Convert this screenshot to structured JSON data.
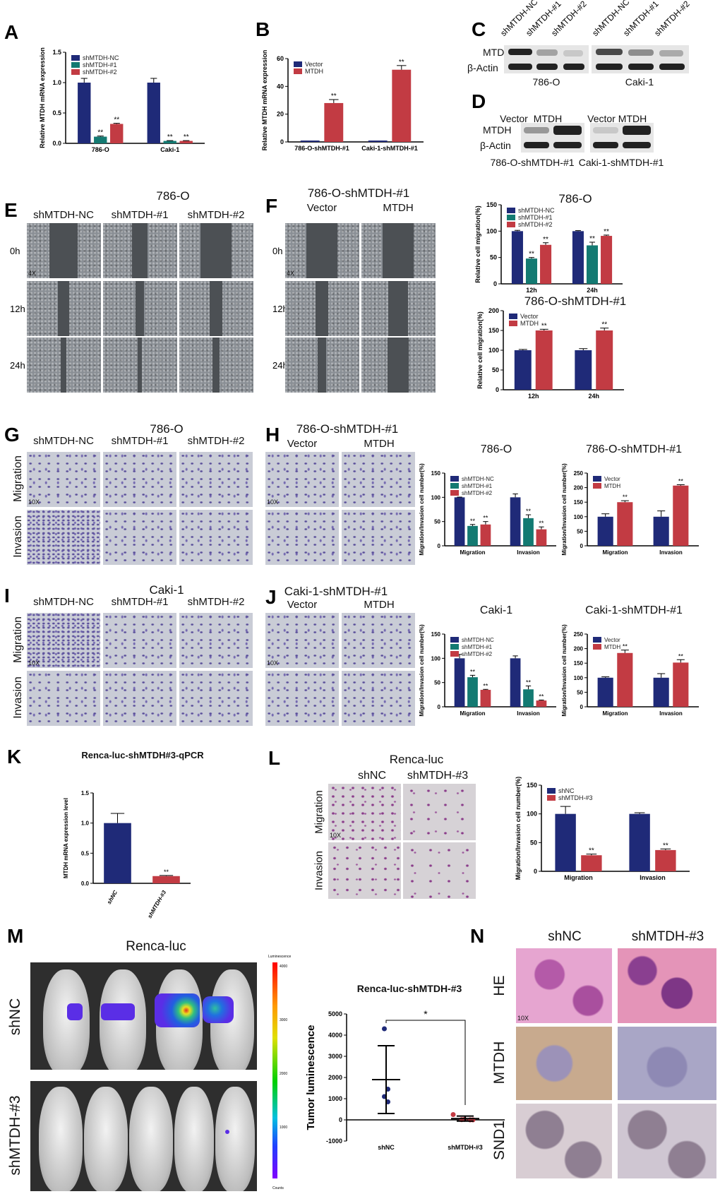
{
  "panel_letters": [
    "A",
    "B",
    "C",
    "D",
    "E",
    "F",
    "G",
    "H",
    "I",
    "J",
    "K",
    "L",
    "M",
    "N"
  ],
  "blots": {
    "c_lanes": [
      "shMTDH-NC",
      "shMTDH-#1",
      "shMTDH-#2",
      "shMTDH-NC",
      "shMTDH-#1",
      "shMTDH-#2"
    ],
    "rows": [
      "MTDH",
      "β-Actin"
    ],
    "c_groups": [
      "786-O",
      "Caki-1"
    ],
    "d_lanes": [
      "Vector",
      "MTDH",
      "Vector",
      "MTDH"
    ],
    "d_groups": [
      "786-O-shMTDH-#1",
      "Caki-1-shMTDH-#1"
    ]
  },
  "wound": {
    "e_title": "786-O",
    "e_cols": [
      "shMTDH-NC",
      "shMTDH-#1",
      "shMTDH-#2"
    ],
    "rows": [
      "0h",
      "12h",
      "24h"
    ],
    "f_title": "786-O-shMTDH-#1",
    "f_cols": [
      "Vector",
      "MTDH"
    ],
    "mag": "4X"
  },
  "transwell": {
    "g_title": "786-O",
    "g_cols": [
      "shMTDH-NC",
      "shMTDH-#1",
      "shMTDH-#2"
    ],
    "rows": [
      "Migration",
      "Invasion"
    ],
    "h_title": "786-O-shMTDH-#1",
    "h_cols": [
      "Vector",
      "MTDH"
    ],
    "i_title": "Caki-1",
    "j_title": "Caki-1-shMTDH-#1",
    "mag": "10X"
  },
  "renca": {
    "l_title": "Renca-luc",
    "l_cols": [
      "shNC",
      "shMTDH-#3"
    ],
    "m_title": "Renca-luc",
    "m_rows": [
      "shNC",
      "shMTDH-#3"
    ],
    "colorbar": {
      "title": "Luminescence",
      "ticks": [
        "4000",
        "3000",
        "2000",
        "1000"
      ],
      "unit": "Counts"
    },
    "n_cols": [
      "shNC",
      "shMTDH-#3"
    ],
    "n_rows": [
      "HE",
      "MTDH",
      "SND1"
    ]
  },
  "colors": {
    "navy": "#1f2a78",
    "teal": "#137a72",
    "red": "#c23b43"
  },
  "chart_data": [
    {
      "id": "A",
      "type": "bar",
      "title": "",
      "ylabel": "Relative MTDH mRNA expression",
      "ylim": [
        0,
        1.5
      ],
      "ticks": [
        0,
        0.5,
        1.0,
        1.5
      ],
      "tick_labels": [
        "0.0",
        "0.5",
        "1.0",
        "1.5"
      ],
      "categories": [
        "786-O",
        "Caki-1"
      ],
      "series": [
        {
          "name": "shMTDH-NC",
          "color": "#1f2a78",
          "values": [
            1.0,
            1.0
          ],
          "err": [
            0.07,
            0.07
          ],
          "sig": [
            "",
            ""
          ]
        },
        {
          "name": "shMTDH-#1",
          "color": "#137a72",
          "values": [
            0.11,
            0.04
          ],
          "err": [
            0.01,
            0.005
          ],
          "sig": [
            "**",
            "**"
          ]
        },
        {
          "name": "shMTDH-#2",
          "color": "#c23b43",
          "values": [
            0.32,
            0.04
          ],
          "err": [
            0.01,
            0.005
          ],
          "sig": [
            "**",
            "**"
          ]
        }
      ]
    },
    {
      "id": "B",
      "type": "bar",
      "title": "",
      "ylabel": "Relative MTDH mRNA expression",
      "ylim": [
        0,
        60
      ],
      "ticks": [
        0,
        20,
        40,
        60
      ],
      "tick_labels": [
        "0",
        "20",
        "40",
        "60"
      ],
      "categories": [
        "786-O-shMTDH-#1",
        "Caki-1-shMTDH-#1"
      ],
      "series": [
        {
          "name": "Vector",
          "color": "#1f2a78",
          "values": [
            1,
            1
          ],
          "err": [
            0,
            0
          ],
          "sig": [
            "",
            ""
          ]
        },
        {
          "name": "MTDH",
          "color": "#c23b43",
          "values": [
            28,
            52
          ],
          "err": [
            2.5,
            3
          ],
          "sig": [
            "**",
            "**"
          ]
        }
      ]
    },
    {
      "id": "E",
      "type": "bar",
      "title": "786-O",
      "ylabel": "Relative  cell migration(%)",
      "ylim": [
        0,
        150
      ],
      "ticks": [
        0,
        50,
        100,
        150
      ],
      "tick_labels": [
        "0",
        "50",
        "100",
        "150"
      ],
      "categories": [
        "12h",
        "24h"
      ],
      "series": [
        {
          "name": "shMTDH-NC",
          "color": "#1f2a78",
          "values": [
            100,
            100
          ],
          "err": [
            1.5,
            1
          ],
          "sig": [
            "",
            ""
          ]
        },
        {
          "name": "shMTDH-#1",
          "color": "#137a72",
          "values": [
            48,
            73
          ],
          "err": [
            2,
            6
          ],
          "sig": [
            "**",
            "**"
          ]
        },
        {
          "name": "shMTDH-#2",
          "color": "#c23b43",
          "values": [
            74,
            91
          ],
          "err": [
            4,
            1.5
          ],
          "sig": [
            "**",
            "**"
          ]
        }
      ]
    },
    {
      "id": "F",
      "type": "bar",
      "title": "786-O-shMTDH-#1",
      "ylabel": "Relative  cell migration(%)",
      "ylim": [
        0,
        200
      ],
      "ticks": [
        0,
        50,
        100,
        150,
        200
      ],
      "tick_labels": [
        "0",
        "50",
        "100",
        "150",
        "200"
      ],
      "categories": [
        "12h",
        "24h"
      ],
      "series": [
        {
          "name": "Vector",
          "color": "#1f2a78",
          "values": [
            100,
            100
          ],
          "err": [
            2,
            4
          ],
          "sig": [
            "",
            ""
          ]
        },
        {
          "name": "MTDH",
          "color": "#c23b43",
          "values": [
            150,
            150
          ],
          "err": [
            3,
            6
          ],
          "sig": [
            "**",
            "**"
          ]
        }
      ]
    },
    {
      "id": "G",
      "type": "bar",
      "title": "786-O",
      "ylabel": "Migration/Invasion cell number(%)",
      "ylim": [
        0,
        150
      ],
      "ticks": [
        0,
        50,
        100,
        150
      ],
      "tick_labels": [
        "0",
        "50",
        "100",
        "150"
      ],
      "categories": [
        "Migration",
        "Invasion"
      ],
      "series": [
        {
          "name": "shMTDH-NC",
          "color": "#1f2a78",
          "values": [
            100,
            100
          ],
          "err": [
            0.5,
            7
          ],
          "sig": [
            "",
            ""
          ]
        },
        {
          "name": "shMTDH-#1",
          "color": "#137a72",
          "values": [
            41,
            57
          ],
          "err": [
            3,
            7
          ],
          "sig": [
            "**",
            "**"
          ]
        },
        {
          "name": "shMTDH-#2",
          "color": "#c23b43",
          "values": [
            44,
            34
          ],
          "err": [
            6,
            5
          ],
          "sig": [
            "**",
            "**"
          ]
        }
      ]
    },
    {
      "id": "H",
      "type": "bar",
      "title": "786-O-shMTDH-#1",
      "ylabel": "Migration/Invasion cell number(%)",
      "ylim": [
        0,
        250
      ],
      "ticks": [
        0,
        50,
        100,
        150,
        200,
        250
      ],
      "tick_labels": [
        "0",
        "50",
        "100",
        "150",
        "200",
        "250"
      ],
      "categories": [
        "Migration",
        "Invasion"
      ],
      "series": [
        {
          "name": "Vector",
          "color": "#1f2a78",
          "values": [
            100,
            100
          ],
          "err": [
            10,
            20
          ],
          "sig": [
            "",
            ""
          ]
        },
        {
          "name": "MTDH",
          "color": "#c23b43",
          "values": [
            150,
            207
          ],
          "err": [
            5,
            3
          ],
          "sig": [
            "**",
            "**"
          ]
        }
      ]
    },
    {
      "id": "I",
      "type": "bar",
      "title": "Caki-1",
      "ylabel": "Migration/Invasion cell number(%)",
      "ylim": [
        0,
        150
      ],
      "ticks": [
        0,
        50,
        100,
        150
      ],
      "tick_labels": [
        "0",
        "50",
        "100",
        "150"
      ],
      "categories": [
        "Migration",
        "Invasion"
      ],
      "series": [
        {
          "name": "shMTDH-NC",
          "color": "#1f2a78",
          "values": [
            100,
            100
          ],
          "err": [
            8,
            5
          ],
          "sig": [
            "",
            ""
          ]
        },
        {
          "name": "shMTDH-#1",
          "color": "#137a72",
          "values": [
            61,
            36
          ],
          "err": [
            4,
            7
          ],
          "sig": [
            "**",
            "**"
          ]
        },
        {
          "name": "shMTDH-#2",
          "color": "#c23b43",
          "values": [
            35,
            13
          ],
          "err": [
            1,
            1
          ],
          "sig": [
            "**",
            "**"
          ]
        }
      ]
    },
    {
      "id": "J",
      "type": "bar",
      "title": "Caki-1-shMTDH-#1",
      "ylabel": "Migration/Invasion cell number(%)",
      "ylim": [
        0,
        250
      ],
      "ticks": [
        0,
        50,
        100,
        150,
        200,
        250
      ],
      "tick_labels": [
        "0",
        "50",
        "100",
        "150",
        "200",
        "250"
      ],
      "categories": [
        "Migration",
        "Invasion"
      ],
      "series": [
        {
          "name": "Vector",
          "color": "#1f2a78",
          "values": [
            100,
            100
          ],
          "err": [
            3,
            14
          ],
          "sig": [
            "",
            ""
          ]
        },
        {
          "name": "MTDH",
          "color": "#c23b43",
          "values": [
            185,
            152
          ],
          "err": [
            10,
            10
          ],
          "sig": [
            "**",
            "**"
          ]
        }
      ]
    },
    {
      "id": "K",
      "type": "bar",
      "title": "Renca-luc-shMTDH#3-qPCR",
      "ylabel": "MTDH mRNA expression level",
      "ylim": [
        0,
        1.5
      ],
      "ticks": [
        0,
        0.5,
        1.0,
        1.5
      ],
      "tick_labels": [
        "0.0",
        "0.5",
        "1.0",
        "1.5"
      ],
      "categories": [
        "shNC",
        "shMTDH-#3"
      ],
      "rotate_x": true,
      "no_legend": true,
      "series": [
        {
          "name": "",
          "color": [
            "#1f2a78",
            "#c23b43"
          ],
          "values": [
            1.0,
            0.12
          ],
          "err": [
            0.16,
            0.01
          ],
          "sig": [
            "",
            "**"
          ]
        }
      ]
    },
    {
      "id": "L",
      "type": "bar",
      "title": "",
      "ylabel": "Migration/Invasion cell number(%)",
      "ylim": [
        0,
        150
      ],
      "ticks": [
        0,
        50,
        100,
        150
      ],
      "tick_labels": [
        "0",
        "50",
        "100",
        "150"
      ],
      "categories": [
        "Migration",
        "Invasion"
      ],
      "series": [
        {
          "name": "shNC",
          "color": "#1f2a78",
          "values": [
            100,
            100
          ],
          "err": [
            13,
            2
          ],
          "sig": [
            "",
            ""
          ]
        },
        {
          "name": "shMTDH-#3",
          "color": "#c23b43",
          "values": [
            28,
            37
          ],
          "err": [
            2,
            2
          ],
          "sig": [
            "**",
            "**"
          ]
        }
      ]
    },
    {
      "id": "M",
      "type": "scatter",
      "title": "Renca-luc-shMTDH-#3",
      "ylabel": "Tumor luminescence",
      "ylim": [
        -1000,
        5000
      ],
      "ticks": [
        -1000,
        0,
        1000,
        2000,
        3000,
        4000,
        5000
      ],
      "tick_labels": [
        "-1000",
        "0",
        "1000",
        "2000",
        "3000",
        "4000",
        "5000"
      ],
      "categories": [
        "shNC",
        "shMTDH-#3"
      ],
      "groups": [
        {
          "name": "shNC",
          "color": "#1f2a78",
          "points": [
            4300,
            1450,
            1100,
            850
          ],
          "mean": 1900,
          "sd": 1600
        },
        {
          "name": "shMTDH-#3",
          "color": "#c23b43",
          "points": [
            250,
            20,
            10,
            0,
            0
          ],
          "mean": 60,
          "sd": 120
        }
      ],
      "significance": "*"
    }
  ]
}
